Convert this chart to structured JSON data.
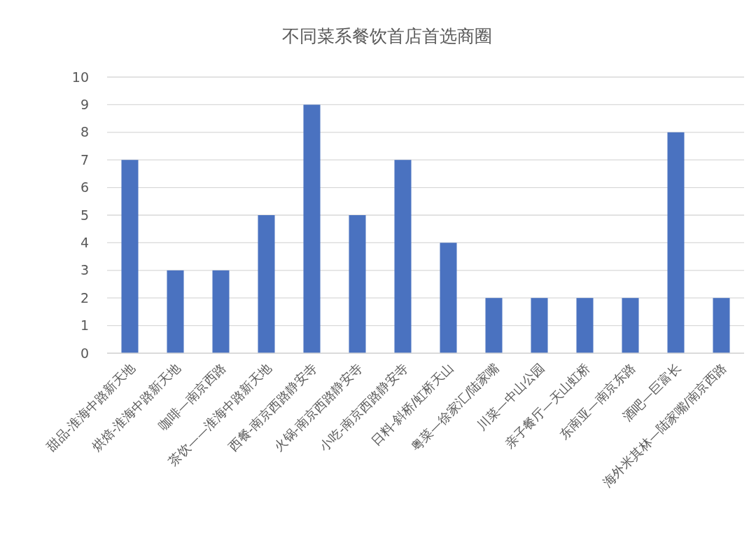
{
  "chart_data": {
    "type": "bar",
    "title": "不同菜系餐饮首店首选商圈",
    "categories": [
      "甜品-淮海中路新天地",
      "烘焙-淮海中路新天地",
      "咖啡—南京西路",
      "茶饮——淮海中路新天地",
      "西餐-南京西路静安寺",
      "火锅-南京西路静安寺",
      "小吃-南京西路静安寺",
      "日料-斜桥/虹桥天山",
      "粤菜—徐家汇/陆家嘴",
      "川菜—中山公园",
      "亲子餐厅—天山虹桥",
      "东南亚—南京东路",
      "酒吧—巨富长",
      "海外米其林—陆家嘴/南京西路"
    ],
    "values": [
      7,
      3,
      3,
      5,
      9,
      5,
      7,
      4,
      2,
      2,
      2,
      2,
      8,
      2
    ],
    "color": "#4a72c0",
    "ylim": [
      0,
      10
    ],
    "yticks": [
      0,
      1,
      2,
      3,
      4,
      5,
      6,
      7,
      8,
      9,
      10
    ],
    "grid": "y"
  }
}
